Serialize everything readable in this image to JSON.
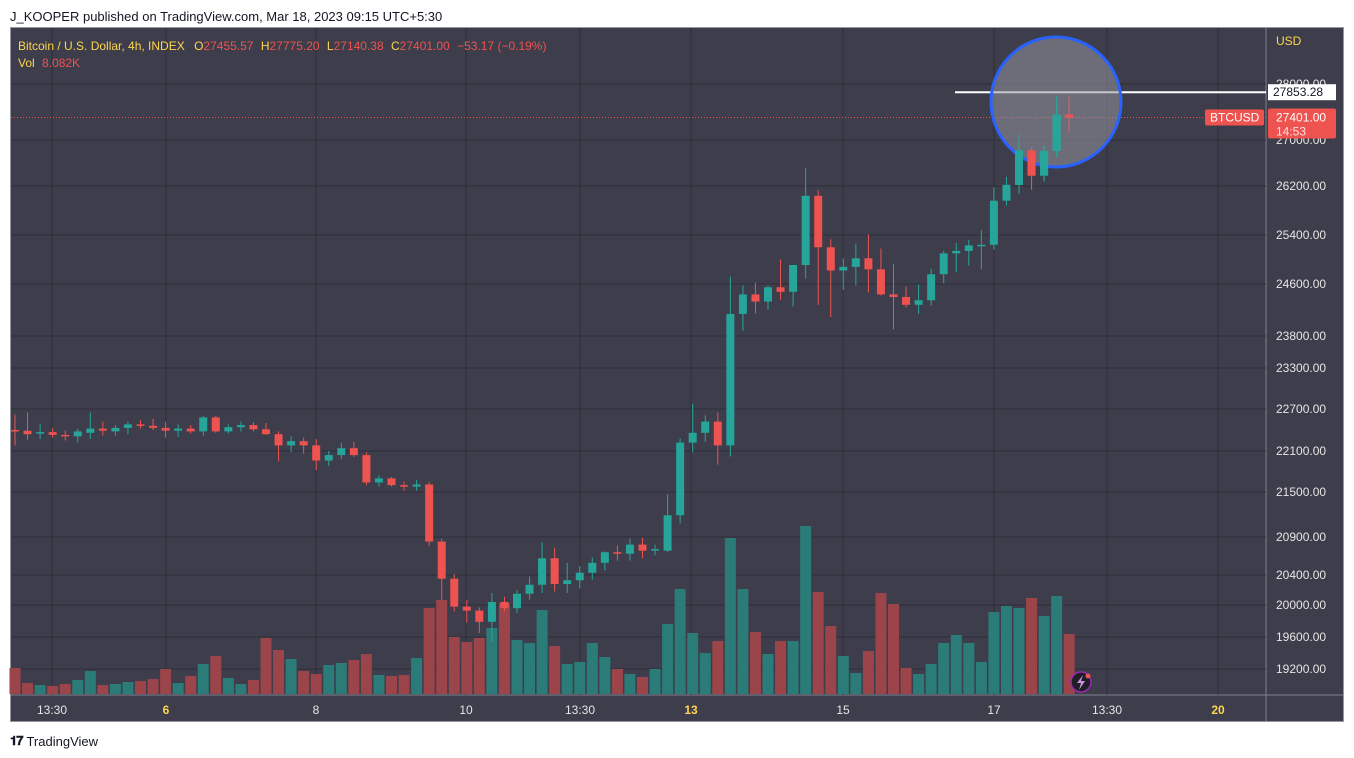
{
  "header": {
    "published_text": "J_KOOPER published on TradingView.com, Mar 18, 2023 09:15 UTC+5:30"
  },
  "legend": {
    "symbol": "Bitcoin / U.S. Dollar, 4h, INDEX",
    "open_label": "O",
    "open": "27455.57",
    "high_label": "H",
    "high": "27775.20",
    "low_label": "L",
    "low": "27140.38",
    "close_label": "C",
    "close": "27401.00",
    "change": "−53.17 (−0.19%)",
    "vol_label": "Vol",
    "vol": "8.082K"
  },
  "price_axis": {
    "currency": "USD",
    "ticks": [
      "28000.00",
      "27000.00",
      "26200.00",
      "25400.00",
      "24600.00",
      "23800.00",
      "23300.00",
      "22700.00",
      "22100.00",
      "21500.00",
      "20900.00",
      "20400.00",
      "20000.00",
      "19600.00",
      "19200.00"
    ],
    "level_label": "27853.28",
    "price_label": "27401.00",
    "countdown": "14:53",
    "symbol_badge": "BTCUSD"
  },
  "time_axis": {
    "ticks": [
      {
        "label": "13:30",
        "bold": false
      },
      {
        "label": "6",
        "bold": true
      },
      {
        "label": "8",
        "bold": false
      },
      {
        "label": "10",
        "bold": false
      },
      {
        "label": "13:30",
        "bold": false
      },
      {
        "label": "13",
        "bold": true
      },
      {
        "label": "15",
        "bold": false
      },
      {
        "label": "17",
        "bold": false
      },
      {
        "label": "13:30",
        "bold": false
      },
      {
        "label": "20",
        "bold": true
      }
    ]
  },
  "colors": {
    "background": "#3d3d4b",
    "grid": "#2f2f3a",
    "up": "#26a69a",
    "down": "#ef5350",
    "up_volume": "#2b7c78",
    "down_volume": "#9b4449",
    "axis_text": "#e6e6e6",
    "highlight_circle": "#2962ff",
    "accent_yellow": "#ffd54f"
  },
  "footer": {
    "brand": "TradingView"
  },
  "chart_data": {
    "type": "candlestick",
    "interval": "4h",
    "symbol": "BTCUSD",
    "annotations": {
      "horizontal_level": 27853.28,
      "highlight": "circle around latest candles"
    },
    "candles": [
      {
        "o": 22400,
        "h": 22620,
        "l": 22180,
        "c": 22380,
        "v": 2.6
      },
      {
        "o": 22390,
        "h": 22650,
        "l": 22260,
        "c": 22340,
        "v": 1.1
      },
      {
        "o": 22350,
        "h": 22480,
        "l": 22270,
        "c": 22370,
        "v": 0.9
      },
      {
        "o": 22370,
        "h": 22430,
        "l": 22290,
        "c": 22330,
        "v": 0.8
      },
      {
        "o": 22330,
        "h": 22390,
        "l": 22250,
        "c": 22310,
        "v": 1.0
      },
      {
        "o": 22310,
        "h": 22420,
        "l": 22220,
        "c": 22380,
        "v": 1.4
      },
      {
        "o": 22360,
        "h": 22650,
        "l": 22270,
        "c": 22420,
        "v": 2.3
      },
      {
        "o": 22420,
        "h": 22520,
        "l": 22320,
        "c": 22390,
        "v": 0.9
      },
      {
        "o": 22380,
        "h": 22470,
        "l": 22320,
        "c": 22430,
        "v": 1.0
      },
      {
        "o": 22430,
        "h": 22520,
        "l": 22340,
        "c": 22480,
        "v": 1.2
      },
      {
        "o": 22480,
        "h": 22540,
        "l": 22420,
        "c": 22460,
        "v": 1.3
      },
      {
        "o": 22460,
        "h": 22560,
        "l": 22400,
        "c": 22430,
        "v": 1.5
      },
      {
        "o": 22430,
        "h": 22520,
        "l": 22290,
        "c": 22390,
        "v": 2.5
      },
      {
        "o": 22390,
        "h": 22480,
        "l": 22300,
        "c": 22420,
        "v": 1.1
      },
      {
        "o": 22420,
        "h": 22470,
        "l": 22350,
        "c": 22380,
        "v": 1.8
      },
      {
        "o": 22380,
        "h": 22600,
        "l": 22320,
        "c": 22580,
        "v": 3.0
      },
      {
        "o": 22580,
        "h": 22600,
        "l": 22360,
        "c": 22380,
        "v": 3.8
      },
      {
        "o": 22380,
        "h": 22480,
        "l": 22350,
        "c": 22440,
        "v": 1.6
      },
      {
        "o": 22440,
        "h": 22520,
        "l": 22380,
        "c": 22470,
        "v": 1.0
      },
      {
        "o": 22470,
        "h": 22510,
        "l": 22380,
        "c": 22410,
        "v": 1.4
      },
      {
        "o": 22410,
        "h": 22500,
        "l": 22330,
        "c": 22340,
        "v": 5.6
      },
      {
        "o": 22340,
        "h": 22380,
        "l": 21950,
        "c": 22180,
        "v": 4.4
      },
      {
        "o": 22180,
        "h": 22310,
        "l": 22080,
        "c": 22240,
        "v": 3.5
      },
      {
        "o": 22240,
        "h": 22290,
        "l": 22060,
        "c": 22180,
        "v": 2.3
      },
      {
        "o": 22180,
        "h": 22270,
        "l": 21820,
        "c": 21960,
        "v": 2.0
      },
      {
        "o": 21960,
        "h": 22100,
        "l": 21880,
        "c": 22040,
        "v": 2.9
      },
      {
        "o": 22040,
        "h": 22220,
        "l": 21980,
        "c": 22140,
        "v": 3.1
      },
      {
        "o": 22140,
        "h": 22230,
        "l": 22010,
        "c": 22040,
        "v": 3.4
      },
      {
        "o": 22040,
        "h": 22080,
        "l": 21600,
        "c": 21640,
        "v": 4.0
      },
      {
        "o": 21640,
        "h": 21740,
        "l": 21580,
        "c": 21700,
        "v": 1.9
      },
      {
        "o": 21700,
        "h": 21720,
        "l": 21580,
        "c": 21600,
        "v": 1.8
      },
      {
        "o": 21600,
        "h": 21650,
        "l": 21520,
        "c": 21580,
        "v": 1.9
      },
      {
        "o": 21580,
        "h": 21680,
        "l": 21520,
        "c": 21610,
        "v": 3.6
      },
      {
        "o": 21610,
        "h": 21650,
        "l": 20780,
        "c": 20840,
        "v": 8.6
      },
      {
        "o": 20840,
        "h": 20880,
        "l": 20060,
        "c": 20350,
        "v": 9.4
      },
      {
        "o": 20350,
        "h": 20410,
        "l": 19920,
        "c": 19980,
        "v": 5.7
      },
      {
        "o": 19980,
        "h": 20070,
        "l": 19780,
        "c": 19930,
        "v": 5.2
      },
      {
        "o": 19930,
        "h": 19970,
        "l": 19650,
        "c": 19790,
        "v": 5.6
      },
      {
        "o": 19790,
        "h": 20160,
        "l": 19540,
        "c": 20040,
        "v": 6.6
      },
      {
        "o": 20040,
        "h": 20110,
        "l": 19920,
        "c": 19960,
        "v": 9.1
      },
      {
        "o": 19960,
        "h": 20200,
        "l": 19900,
        "c": 20150,
        "v": 5.4
      },
      {
        "o": 20150,
        "h": 20380,
        "l": 20070,
        "c": 20270,
        "v": 5.1
      },
      {
        "o": 20270,
        "h": 20830,
        "l": 20160,
        "c": 20620,
        "v": 8.4
      },
      {
        "o": 20620,
        "h": 20760,
        "l": 20180,
        "c": 20280,
        "v": 4.8
      },
      {
        "o": 20280,
        "h": 20560,
        "l": 20160,
        "c": 20330,
        "v": 3.0
      },
      {
        "o": 20330,
        "h": 20520,
        "l": 20220,
        "c": 20430,
        "v": 3.2
      },
      {
        "o": 20430,
        "h": 20630,
        "l": 20340,
        "c": 20560,
        "v": 5.1
      },
      {
        "o": 20560,
        "h": 20710,
        "l": 20460,
        "c": 20700,
        "v": 3.7
      },
      {
        "o": 20700,
        "h": 20790,
        "l": 20590,
        "c": 20680,
        "v": 2.5
      },
      {
        "o": 20680,
        "h": 20880,
        "l": 20590,
        "c": 20800,
        "v": 2.0
      },
      {
        "o": 20800,
        "h": 20890,
        "l": 20620,
        "c": 20720,
        "v": 1.7
      },
      {
        "o": 20720,
        "h": 20800,
        "l": 20660,
        "c": 20740,
        "v": 2.5
      },
      {
        "o": 20720,
        "h": 21470,
        "l": 20700,
        "c": 21190,
        "v": 7.0
      },
      {
        "o": 21190,
        "h": 22280,
        "l": 21080,
        "c": 22220,
        "v": 10.5
      },
      {
        "o": 22220,
        "h": 22780,
        "l": 22080,
        "c": 22360,
        "v": 6.1
      },
      {
        "o": 22360,
        "h": 22610,
        "l": 22230,
        "c": 22520,
        "v": 4.1
      },
      {
        "o": 22520,
        "h": 22650,
        "l": 21900,
        "c": 22180,
        "v": 5.3
      },
      {
        "o": 22180,
        "h": 24720,
        "l": 22020,
        "c": 24140,
        "v": 15.6
      },
      {
        "o": 24140,
        "h": 24580,
        "l": 23880,
        "c": 24440,
        "v": 10.5
      },
      {
        "o": 24440,
        "h": 24620,
        "l": 24150,
        "c": 24330,
        "v": 6.2
      },
      {
        "o": 24330,
        "h": 24580,
        "l": 24200,
        "c": 24550,
        "v": 4.0
      },
      {
        "o": 24550,
        "h": 25000,
        "l": 24360,
        "c": 24480,
        "v": 5.3
      },
      {
        "o": 24480,
        "h": 24910,
        "l": 24250,
        "c": 24910,
        "v": 5.3
      },
      {
        "o": 24910,
        "h": 26520,
        "l": 24690,
        "c": 26040,
        "v": 16.8
      },
      {
        "o": 26040,
        "h": 26130,
        "l": 24280,
        "c": 25200,
        "v": 10.2
      },
      {
        "o": 25200,
        "h": 25330,
        "l": 24090,
        "c": 24820,
        "v": 6.8
      },
      {
        "o": 24820,
        "h": 25020,
        "l": 24510,
        "c": 24880,
        "v": 3.8
      },
      {
        "o": 24880,
        "h": 25260,
        "l": 24580,
        "c": 25020,
        "v": 2.1
      },
      {
        "o": 25020,
        "h": 25410,
        "l": 24470,
        "c": 24840,
        "v": 4.3
      },
      {
        "o": 24840,
        "h": 25180,
        "l": 24420,
        "c": 24440,
        "v": 10.1
      },
      {
        "o": 24440,
        "h": 24920,
        "l": 23900,
        "c": 24400,
        "v": 9.0
      },
      {
        "o": 24400,
        "h": 24560,
        "l": 24240,
        "c": 24280,
        "v": 2.6
      },
      {
        "o": 24280,
        "h": 24590,
        "l": 24140,
        "c": 24350,
        "v": 2.0
      },
      {
        "o": 24350,
        "h": 24850,
        "l": 24270,
        "c": 24760,
        "v": 3.0
      },
      {
        "o": 24760,
        "h": 25140,
        "l": 24610,
        "c": 25100,
        "v": 5.1
      },
      {
        "o": 25100,
        "h": 25270,
        "l": 24790,
        "c": 25140,
        "v": 5.9
      },
      {
        "o": 25140,
        "h": 25320,
        "l": 24900,
        "c": 25230,
        "v": 5.1
      },
      {
        "o": 25230,
        "h": 25480,
        "l": 24840,
        "c": 25240,
        "v": 3.2
      },
      {
        "o": 25240,
        "h": 26180,
        "l": 25160,
        "c": 25960,
        "v": 8.2
      },
      {
        "o": 25960,
        "h": 26360,
        "l": 25880,
        "c": 26220,
        "v": 8.8
      },
      {
        "o": 26220,
        "h": 27100,
        "l": 26070,
        "c": 26820,
        "v": 8.6
      },
      {
        "o": 26820,
        "h": 26880,
        "l": 26140,
        "c": 26380,
        "v": 9.6
      },
      {
        "o": 26380,
        "h": 26900,
        "l": 26280,
        "c": 26810,
        "v": 7.8
      },
      {
        "o": 26810,
        "h": 27780,
        "l": 26700,
        "c": 27456,
        "v": 9.8
      },
      {
        "o": 27456,
        "h": 27775,
        "l": 27140,
        "c": 27401,
        "v": 6.0
      }
    ]
  }
}
